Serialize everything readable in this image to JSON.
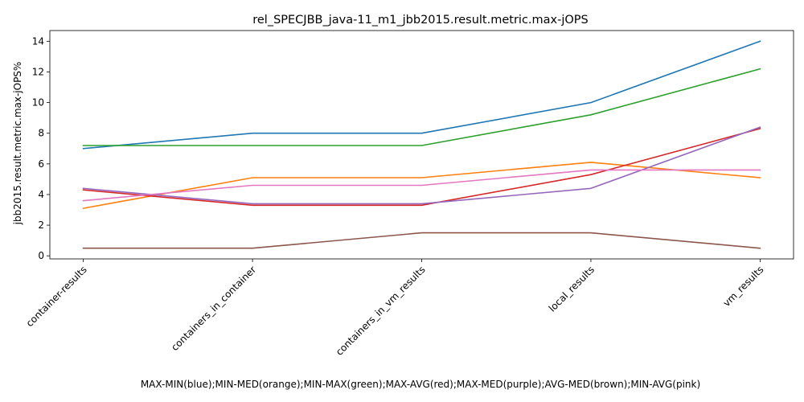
{
  "chart_data": {
    "type": "line",
    "title": "rel_SPECJBB_java-11_m1_jbb2015.result.metric.max-jOPS",
    "xlabel": "MAX-MIN(blue);MIN-MED(orange);MIN-MAX(green);MAX-AVG(red);MAX-MED(purple);AVG-MED(brown);MIN-AVG(pink)",
    "ylabel": "jbb2015.result.metric.max-jOPS%",
    "categories": [
      "container-results",
      "containers_in_container",
      "containers_in_vm_results",
      "local_results",
      "vm_results"
    ],
    "ylim": [
      -0.2,
      14.7
    ],
    "yticks": [
      0,
      2,
      4,
      6,
      8,
      10,
      12,
      14
    ],
    "grid": false,
    "series": [
      {
        "color": "#1f77b4",
        "values": [
          7.0,
          8.0,
          8.0,
          10.0,
          14.0
        ]
      },
      {
        "color": "#ff7f0e",
        "values": [
          3.1,
          5.1,
          5.1,
          6.1,
          5.1
        ]
      },
      {
        "color": "#2ca02c",
        "values": [
          7.2,
          7.2,
          7.2,
          9.2,
          12.2
        ]
      },
      {
        "color": "#d62728",
        "values": [
          4.3,
          3.3,
          3.3,
          5.3,
          8.3
        ]
      },
      {
        "color": "#9467bd",
        "values": [
          4.4,
          3.4,
          3.4,
          4.4,
          8.4
        ]
      },
      {
        "color": "#8c564b",
        "values": [
          0.5,
          0.5,
          1.5,
          1.5,
          0.5
        ]
      },
      {
        "color": "#e377c2",
        "values": [
          3.6,
          4.6,
          4.6,
          5.6,
          5.6
        ]
      }
    ]
  }
}
